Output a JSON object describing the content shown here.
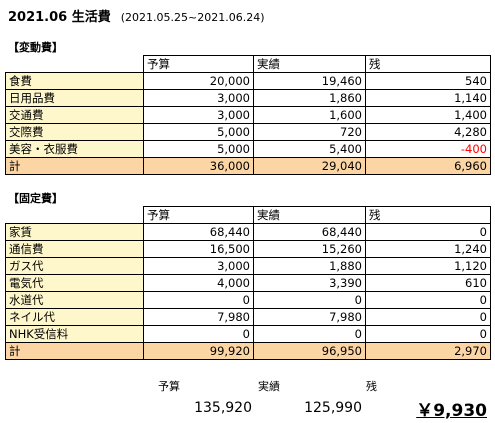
{
  "title": "2021.06 生活費",
  "subtitle": "(2021.05.25~2021.06.24)",
  "headers": {
    "budget": "予算",
    "actual": "実績",
    "remain": "残"
  },
  "variable": {
    "heading": "【変動費】",
    "rows": [
      {
        "label": "食費",
        "budget": "20,000",
        "actual": "19,460",
        "remain": "540"
      },
      {
        "label": "日用品費",
        "budget": "3,000",
        "actual": "1,860",
        "remain": "1,140"
      },
      {
        "label": "交通費",
        "budget": "3,000",
        "actual": "1,600",
        "remain": "1,400"
      },
      {
        "label": "交際費",
        "budget": "5,000",
        "actual": "720",
        "remain": "4,280"
      },
      {
        "label": "美容・衣服費",
        "budget": "5,000",
        "actual": "5,400",
        "remain": "-400"
      }
    ],
    "total": {
      "label": "計",
      "budget": "36,000",
      "actual": "29,040",
      "remain": "6,960"
    }
  },
  "fixed": {
    "heading": "【固定費】",
    "rows": [
      {
        "label": "家賃",
        "budget": "68,440",
        "actual": "68,440",
        "remain": "0"
      },
      {
        "label": "通信費",
        "budget": "16,500",
        "actual": "15,260",
        "remain": "1,240"
      },
      {
        "label": "ガス代",
        "budget": "3,000",
        "actual": "1,880",
        "remain": "1,120"
      },
      {
        "label": "電気代",
        "budget": "4,000",
        "actual": "3,390",
        "remain": "610"
      },
      {
        "label": "水道代",
        "budget": "0",
        "actual": "0",
        "remain": "0"
      },
      {
        "label": "ネイル代",
        "budget": "7,980",
        "actual": "7,980",
        "remain": "0"
      },
      {
        "label": "NHK受信料",
        "budget": "0",
        "actual": "0",
        "remain": "0"
      }
    ],
    "total": {
      "label": "計",
      "budget": "99,920",
      "actual": "96,950",
      "remain": "2,970"
    }
  },
  "summary": {
    "budget_label": "予算",
    "actual_label": "実績",
    "remain_label": "残",
    "budget": "135,920",
    "actual": "125,990",
    "remain": "￥9,930"
  },
  "colors": {
    "label_bg": "#fff7cc",
    "total_bg": "#fcd5a5",
    "negative": "#ff0000"
  }
}
